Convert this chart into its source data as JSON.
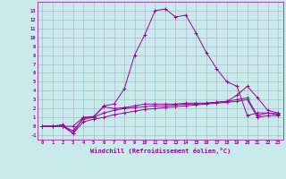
{
  "xlabel": "Windchill (Refroidissement éolien,°C)",
  "bg_color": "#c8eaea",
  "line_color": "#990099",
  "grid_color": "#aaaacc",
  "x_values": [
    0,
    1,
    2,
    3,
    4,
    5,
    6,
    7,
    8,
    9,
    10,
    11,
    12,
    13,
    14,
    15,
    16,
    17,
    18,
    19,
    20,
    21,
    22,
    23
  ],
  "line1_y": [
    0,
    0,
    0,
    0,
    1,
    1,
    2.3,
    2.5,
    4.2,
    8,
    10.3,
    13,
    13.2,
    12.3,
    12.5,
    10.5,
    8.3,
    6.5,
    5,
    4.5,
    1.2,
    1.5,
    1.5,
    1.3
  ],
  "line2_y": [
    0,
    0,
    0.2,
    -0.8,
    1,
    1.1,
    2.2,
    2,
    2.1,
    2.3,
    2.5,
    2.5,
    2.5,
    2.5,
    2.6,
    2.6,
    2.6,
    2.7,
    2.8,
    3.5,
    4.5,
    3.2,
    1.8,
    1.5
  ],
  "line3_y": [
    0,
    0,
    0,
    -0.5,
    0.8,
    1.0,
    1.5,
    1.8,
    2.0,
    2.1,
    2.2,
    2.3,
    2.3,
    2.4,
    2.5,
    2.5,
    2.6,
    2.7,
    2.8,
    3.0,
    3.2,
    1.2,
    1.5,
    1.4
  ],
  "line4_y": [
    0,
    0,
    0,
    -0.8,
    0.5,
    0.8,
    1.0,
    1.3,
    1.5,
    1.7,
    1.9,
    2.0,
    2.1,
    2.2,
    2.3,
    2.4,
    2.5,
    2.6,
    2.7,
    2.8,
    3.0,
    1.0,
    1.2,
    1.2
  ],
  "ylim": [
    -1.5,
    14
  ],
  "xlim": [
    -0.5,
    23.5
  ],
  "yticks": [
    -1,
    0,
    1,
    2,
    3,
    4,
    5,
    6,
    7,
    8,
    9,
    10,
    11,
    12,
    13
  ],
  "xticks": [
    0,
    1,
    2,
    3,
    4,
    5,
    6,
    7,
    8,
    9,
    10,
    11,
    12,
    13,
    14,
    15,
    16,
    17,
    18,
    19,
    20,
    21,
    22,
    23
  ]
}
